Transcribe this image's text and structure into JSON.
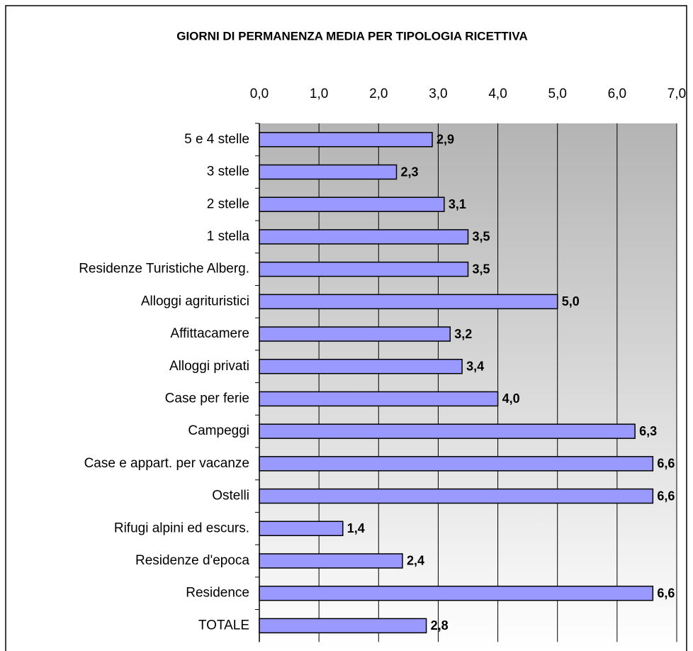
{
  "chart_data": {
    "type": "bar",
    "orientation": "horizontal",
    "title": "GIORNI DI PERMANENZA MEDIA PER TIPOLOGIA RICETTIVA",
    "categories": [
      "5 e 4 stelle",
      "3 stelle",
      "2 stelle",
      "1 stella",
      "Residenze Turistiche Alberg.",
      "Alloggi agrituristici",
      "Affittacamere",
      "Alloggi privati",
      "Case per ferie",
      "Campeggi",
      "Case e appart. per vacanze",
      "Ostelli",
      "Rifugi alpini ed escurs.",
      "Residenze d'epoca",
      "Residence",
      "TOTALE"
    ],
    "values": [
      2.9,
      2.3,
      3.1,
      3.5,
      3.5,
      5.0,
      3.2,
      3.4,
      4.0,
      6.3,
      6.6,
      6.6,
      1.4,
      2.4,
      6.6,
      2.8
    ],
    "value_labels": [
      "2,9",
      "2,3",
      "3,1",
      "3,5",
      "3,5",
      "5,0",
      "3,2",
      "3,4",
      "4,0",
      "6,3",
      "6,6",
      "6,6",
      "1,4",
      "2,4",
      "6,6",
      "2,8"
    ],
    "color": "#9999ff",
    "xlim": [
      0,
      7
    ],
    "xticks": [
      {
        "value": 0,
        "label": "0,0"
      },
      {
        "value": 1,
        "label": "1,0"
      },
      {
        "value": 2,
        "label": "2,0"
      },
      {
        "value": 3,
        "label": "3,0"
      },
      {
        "value": 4,
        "label": "4,0"
      },
      {
        "value": 5,
        "label": "5,0"
      },
      {
        "value": 6,
        "label": "6,0"
      },
      {
        "value": 7,
        "label": "7,0"
      }
    ],
    "grid": true
  }
}
